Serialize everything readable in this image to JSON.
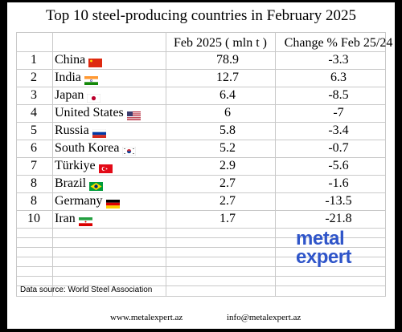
{
  "title": "Top 10 steel-producing countries in February 2025",
  "header": {
    "production": "Feb 2025 ( mln t )",
    "change": "Change % Feb 25/24"
  },
  "rows": [
    {
      "rank": "1",
      "country": "China",
      "flag": "china-flag-icon",
      "production": "78.9",
      "change": "-3.3"
    },
    {
      "rank": "2",
      "country": "India",
      "flag": "india-flag-icon",
      "production": "12.7",
      "change": "6.3"
    },
    {
      "rank": "3",
      "country": "Japan",
      "flag": "japan-flag-icon",
      "production": "6.4",
      "change": "-8.5"
    },
    {
      "rank": "4",
      "country": "United States",
      "flag": "usa-flag-icon",
      "production": "6",
      "change": "-7"
    },
    {
      "rank": "5",
      "country": "Russia",
      "flag": "russia-flag-icon",
      "production": "5.8",
      "change": "-3.4"
    },
    {
      "rank": "6",
      "country": "South Korea",
      "flag": "south-korea-flag-icon",
      "production": "5.2",
      "change": "-0.7"
    },
    {
      "rank": "7",
      "country": "Türkiye",
      "flag": "turkiye-flag-icon",
      "production": "2.9",
      "change": "-5.6"
    },
    {
      "rank": "8",
      "country": "Brazil",
      "flag": "brazil-flag-icon",
      "production": "2.7",
      "change": "-1.6"
    },
    {
      "rank": "8",
      "country": "Germany",
      "flag": "germany-flag-icon",
      "production": "2.7",
      "change": "-13.5"
    },
    {
      "rank": "10",
      "country": "Iran",
      "flag": "iran-flag-icon",
      "production": "1.7",
      "change": "-21.8"
    }
  ],
  "logo": {
    "line1": "metal",
    "line2": "expert"
  },
  "source": "Data source: World Steel Association",
  "footer": {
    "website": "www.metalexpert.az",
    "email": "info@metalexpert.az"
  }
}
